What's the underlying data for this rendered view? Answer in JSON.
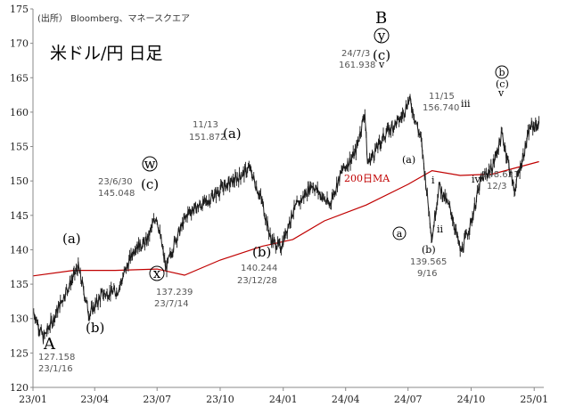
{
  "source": "(出所） Bloomberg、マネースクエア",
  "title": "米ドル/円 日足",
  "colors": {
    "price": "#1a1a1a",
    "ma": "#c00000",
    "axis": "#888888",
    "grid": "#f4f4f4"
  },
  "chart_data": {
    "type": "line",
    "title": "米ドル/円 日足",
    "xlabel": "",
    "ylabel": "",
    "ylim": [
      120,
      175
    ],
    "xlim": [
      "2023-01-01",
      "2025-01-15"
    ],
    "grid": false,
    "y_ticks": [
      "120",
      "125",
      "130",
      "135",
      "140",
      "145",
      "150",
      "155",
      "160",
      "165",
      "170",
      "175"
    ],
    "x_ticks": [
      {
        "date": "2023-01-01",
        "label": "23/01"
      },
      {
        "date": "2023-04-01",
        "label": "23/04"
      },
      {
        "date": "2023-07-01",
        "label": "23/07"
      },
      {
        "date": "2023-10-01",
        "label": "23/10"
      },
      {
        "date": "2024-01-01",
        "label": "24/01"
      },
      {
        "date": "2024-04-01",
        "label": "24/04"
      },
      {
        "date": "2024-07-01",
        "label": "24/07"
      },
      {
        "date": "2024-10-01",
        "label": "24/10"
      },
      {
        "date": "2025-01-01",
        "label": "25/01"
      }
    ],
    "series": [
      {
        "name": "",
        "style": "candlestick-line",
        "points": [
          [
            "2023-01-02",
            131.0
          ],
          [
            "2023-01-16",
            127.158
          ],
          [
            "2023-01-31",
            130.0
          ],
          [
            "2023-02-16",
            133.5
          ],
          [
            "2023-03-08",
            137.5
          ],
          [
            "2023-03-24",
            130.6
          ],
          [
            "2023-04-12",
            133.5
          ],
          [
            "2023-05-04",
            134.0
          ],
          [
            "2023-05-30",
            140.5
          ],
          [
            "2023-06-15",
            141.0
          ],
          [
            "2023-06-30",
            145.048
          ],
          [
            "2023-07-14",
            137.239
          ],
          [
            "2023-07-28",
            141.5
          ],
          [
            "2023-08-16",
            145.5
          ],
          [
            "2023-09-12",
            147.0
          ],
          [
            "2023-10-04",
            149.0
          ],
          [
            "2023-10-21",
            150.0
          ],
          [
            "2023-11-13",
            151.872
          ],
          [
            "2023-12-01",
            147.0
          ],
          [
            "2023-12-14",
            141.5
          ],
          [
            "2023-12-28",
            140.244
          ],
          [
            "2024-01-15",
            145.5
          ],
          [
            "2024-02-12",
            149.5
          ],
          [
            "2024-03-08",
            146.5
          ],
          [
            "2024-03-27",
            151.5
          ],
          [
            "2024-04-15",
            154.0
          ],
          [
            "2024-04-29",
            160.0
          ],
          [
            "2024-05-03",
            152.5
          ],
          [
            "2024-05-30",
            157.0
          ],
          [
            "2024-06-20",
            159.0
          ],
          [
            "2024-07-03",
            161.938
          ],
          [
            "2024-07-20",
            156.0
          ],
          [
            "2024-08-05",
            141.7
          ],
          [
            "2024-08-15",
            149.3
          ],
          [
            "2024-09-02",
            145.5
          ],
          [
            "2024-09-16",
            139.565
          ],
          [
            "2024-10-01",
            144.0
          ],
          [
            "2024-10-15",
            150.0
          ],
          [
            "2024-11-01",
            152.0
          ],
          [
            "2024-11-15",
            156.74
          ],
          [
            "2024-11-28",
            151.0
          ],
          [
            "2024-12-03",
            148.621
          ],
          [
            "2024-12-18",
            154.5
          ],
          [
            "2024-12-26",
            157.8
          ],
          [
            "2025-01-08",
            158.2
          ]
        ]
      },
      {
        "name": "200日MA",
        "style": "line",
        "points": [
          [
            "2023-01-01",
            136.2
          ],
          [
            "2023-03-01",
            137.0
          ],
          [
            "2023-05-01",
            137.0
          ],
          [
            "2023-07-01",
            137.2
          ],
          [
            "2023-08-10",
            136.3
          ],
          [
            "2023-10-01",
            138.5
          ],
          [
            "2023-12-01",
            140.5
          ],
          [
            "2024-01-15",
            141.5
          ],
          [
            "2024-03-01",
            144.2
          ],
          [
            "2024-05-01",
            146.5
          ],
          [
            "2024-07-01",
            149.5
          ],
          [
            "2024-08-05",
            151.5
          ],
          [
            "2024-09-15",
            150.8
          ],
          [
            "2024-11-01",
            151.0
          ],
          [
            "2025-01-08",
            152.8
          ]
        ]
      }
    ],
    "annotations": [
      {
        "date": "2023-01-16",
        "value": 127.158,
        "date_label": "23/1/16",
        "value_label": "127.158",
        "wave": "A"
      },
      {
        "date": "2023-03-08",
        "value": 137.5,
        "wave": "(a)"
      },
      {
        "date": "2023-03-24",
        "value": 130.6,
        "wave": "(b)"
      },
      {
        "date": "2023-06-30",
        "value": 145.048,
        "date_label": "23/6/30",
        "value_label": "145.048",
        "wave_circle": "w",
        "wave": "(c)"
      },
      {
        "date": "2023-07-14",
        "value": 137.239,
        "date_label": "23/7/14",
        "value_label": "137.239",
        "wave_circle": "x"
      },
      {
        "date": "2023-11-13",
        "value": 151.872,
        "date_label": "11/13",
        "value_label": "151.872",
        "wave": "(a)"
      },
      {
        "date": "2023-12-28",
        "value": 140.244,
        "date_label": "23/12/28",
        "value_label": "140.244",
        "wave": "(b)"
      },
      {
        "date": "2024-07-03",
        "value": 161.938,
        "date_label": "24/7/3",
        "value_label": "161.938",
        "wave": "B",
        "wave_circle": "y",
        "wave2": "(c)"
      },
      {
        "date": "2024-08-05",
        "value": 141.7,
        "wave_circle": "a"
      },
      {
        "date": "2024-08-15",
        "value": 149.3,
        "wave_small": "(a)"
      },
      {
        "date": "2024-09-16",
        "value": 139.565,
        "date_label": "9/16",
        "value_label": "139.565",
        "wave_small": "(b)"
      },
      {
        "date": "2024-10-15",
        "value": 150.0,
        "wave": "i"
      },
      {
        "date": "2024-10-25",
        "value": 146.0,
        "wave": "ii"
      },
      {
        "date": "2024-11-15",
        "value": 156.74,
        "date_label": "11/15",
        "value_label": "156.740",
        "wave": "iii"
      },
      {
        "date": "2024-12-03",
        "value": 148.621,
        "date_label": "12/3",
        "value_label": "148.621",
        "wave": "iv"
      },
      {
        "date": "2025-01-08",
        "value": 158.2,
        "wave_circle": "b",
        "wave_small": "(c)"
      }
    ]
  },
  "labels": {
    "A": "A",
    "A_val": "127.158",
    "A_date": "23/1/16",
    "a1": "(a)",
    "b1": "(b)",
    "w": "w",
    "c1": "(c)",
    "w_date": "23/6/30",
    "w_val": "145.048",
    "x": "x",
    "x_val": "137.239",
    "x_date": "23/7/14",
    "a2_date": "11/13",
    "a2_val": "151.872",
    "a2": "(a)",
    "b2": "(b)",
    "b2_val": "140.244",
    "b2_date": "23/12/28",
    "B": "B",
    "y": "y",
    "c2": "(c)",
    "B_date": "24/7/3",
    "B_val": "161.938",
    "v1": "v",
    "ma": "200日MA",
    "ca": "a",
    "sa": "(a)",
    "sb": "(b)",
    "sb_val": "139.565",
    "sb_date": "9/16",
    "i": "i",
    "ii": "ii",
    "iii_date": "11/15",
    "iii_val": "156.740",
    "iii": "iii",
    "iv": "iv",
    "iv_val": "148.621",
    "iv_date": "12/3",
    "cb": "b",
    "sc": "(c)",
    "v2": "v"
  }
}
